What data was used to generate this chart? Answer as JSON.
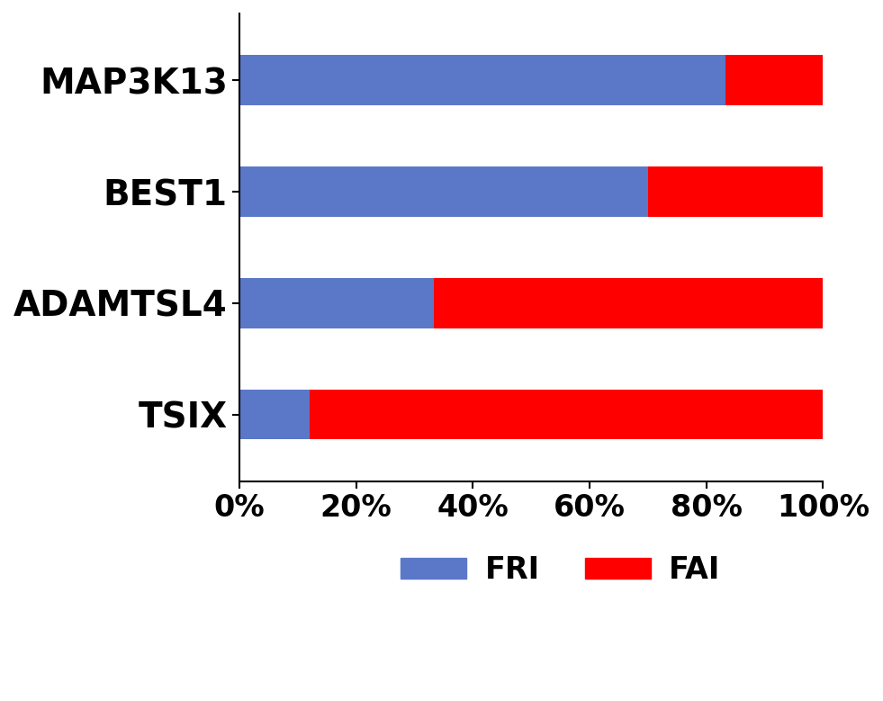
{
  "categories": [
    "TSIX",
    "ADAMTSL4",
    "BEST1",
    "MAP3K13"
  ],
  "FRI": [
    0.12,
    0.333,
    0.7,
    0.833
  ],
  "FAI": [
    0.88,
    0.667,
    0.3,
    0.167
  ],
  "fri_color": "#5b78c8",
  "fai_color": "#ff0000",
  "xlim": [
    0,
    1
  ],
  "xticks": [
    0,
    0.2,
    0.4,
    0.6,
    0.8,
    1.0
  ],
  "xticklabels": [
    "0%",
    "20%",
    "40%",
    "60%",
    "80%",
    "100%"
  ],
  "xtick_fontsize": 24,
  "ytick_fontsize": 28,
  "legend_fontsize": 24,
  "bar_height": 0.45,
  "background_color": "#ffffff"
}
